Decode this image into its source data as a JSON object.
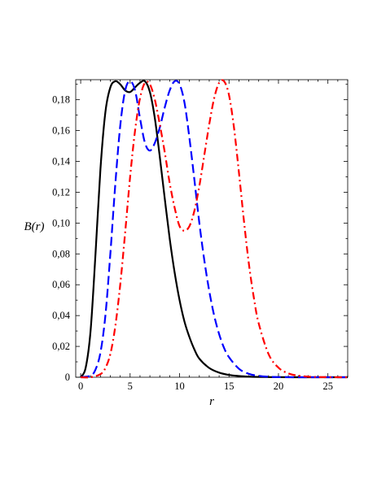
{
  "chart_data": {
    "type": "line",
    "title": "",
    "xlabel": "r",
    "ylabel": "B(r)",
    "xlim": [
      -0.5,
      27
    ],
    "ylim": [
      0,
      0.193
    ],
    "x_ticks": [
      0,
      5,
      10,
      15,
      20,
      25
    ],
    "x_tick_labels": [
      "0",
      "5",
      "10",
      "15",
      "20",
      "25"
    ],
    "y_ticks": [
      0,
      0.02,
      0.04,
      0.06,
      0.08,
      0.1,
      0.12,
      0.14,
      0.16,
      0.18
    ],
    "y_tick_labels": [
      "0",
      "0,02",
      "0,04",
      "0,06",
      "0,08",
      "0,10",
      "0,12",
      "0,14",
      "0,16",
      "0,18"
    ],
    "grid": false,
    "legend": "none",
    "series": [
      {
        "color": "#000000",
        "style": "solid",
        "x": [
          0,
          0.5,
          1,
          1.5,
          2,
          2.5,
          3,
          3.5,
          4,
          4.5,
          5,
          5.5,
          6,
          6.5,
          7,
          7.5,
          8,
          8.5,
          9,
          9.5,
          10,
          10.5,
          11,
          11.5,
          12,
          13,
          14,
          15,
          16,
          17,
          18,
          19,
          20,
          22,
          24,
          27
        ],
        "y": [
          0,
          0.006,
          0.03,
          0.08,
          0.135,
          0.172,
          0.188,
          0.192,
          0.19,
          0.186,
          0.185,
          0.188,
          0.191,
          0.192,
          0.185,
          0.168,
          0.143,
          0.116,
          0.09,
          0.068,
          0.05,
          0.036,
          0.026,
          0.018,
          0.012,
          0.006,
          0.003,
          0.0015,
          0.0008,
          0.0004,
          0.0002,
          0.0001,
          5e-05,
          0,
          0,
          0
        ]
      },
      {
        "color": "#0000ff",
        "style": "dash",
        "x": [
          0,
          1,
          1.5,
          2,
          2.5,
          3,
          3.5,
          4,
          4.5,
          5,
          5.5,
          6,
          6.5,
          7,
          7.5,
          8,
          8.5,
          9,
          9.5,
          10,
          10.5,
          11,
          11.5,
          12,
          12.5,
          13,
          13.5,
          14,
          14.5,
          15,
          16,
          17,
          18,
          19,
          20,
          22,
          24,
          27
        ],
        "y": [
          0,
          0.001,
          0.005,
          0.016,
          0.04,
          0.08,
          0.125,
          0.163,
          0.186,
          0.192,
          0.186,
          0.168,
          0.152,
          0.147,
          0.152,
          0.162,
          0.175,
          0.186,
          0.192,
          0.19,
          0.178,
          0.155,
          0.128,
          0.1,
          0.076,
          0.056,
          0.04,
          0.028,
          0.019,
          0.013,
          0.0055,
          0.0022,
          0.0009,
          0.0003,
          0.0001,
          0,
          0,
          0
        ]
      },
      {
        "color": "#ff0000",
        "style": "dashdot",
        "x": [
          0,
          1,
          2,
          2.5,
          3,
          3.5,
          4,
          4.5,
          5,
          5.5,
          6,
          6.5,
          7,
          7.5,
          8,
          8.5,
          9,
          9.5,
          10,
          10.5,
          11,
          11.5,
          12,
          12.5,
          13,
          13.5,
          14,
          14.5,
          15,
          15.5,
          16,
          16.5,
          17,
          17.5,
          18,
          19,
          20,
          21,
          22,
          23,
          24,
          27
        ],
        "y": [
          0,
          0,
          0.002,
          0.006,
          0.015,
          0.033,
          0.06,
          0.094,
          0.13,
          0.16,
          0.181,
          0.191,
          0.19,
          0.18,
          0.164,
          0.146,
          0.126,
          0.11,
          0.098,
          0.095,
          0.098,
          0.108,
          0.124,
          0.144,
          0.164,
          0.181,
          0.191,
          0.192,
          0.183,
          0.162,
          0.133,
          0.102,
          0.074,
          0.052,
          0.035,
          0.015,
          0.0062,
          0.0025,
          0.001,
          0.0004,
          0.0001,
          0
        ]
      }
    ]
  }
}
